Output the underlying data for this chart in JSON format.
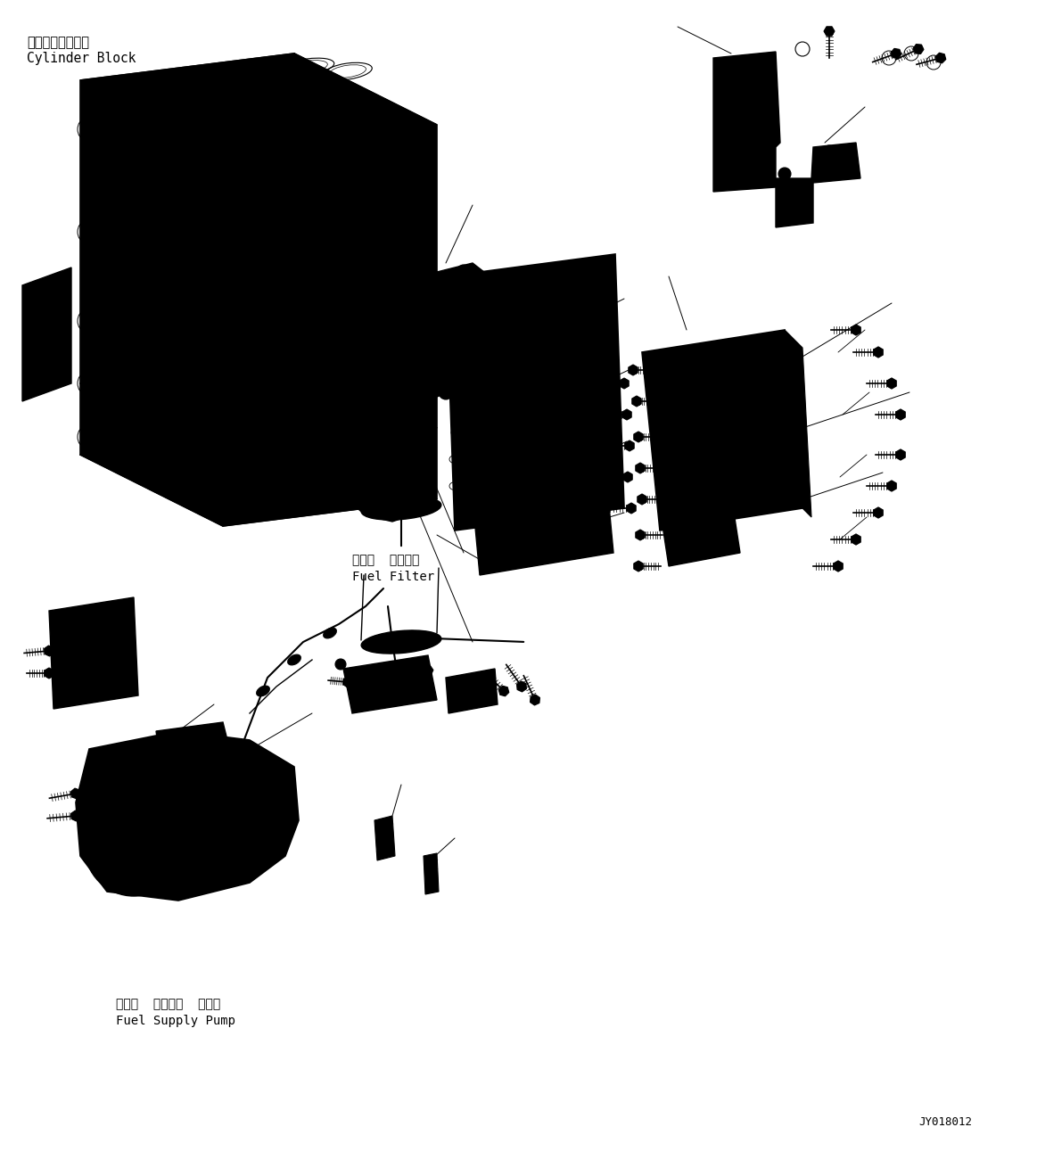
{
  "background_color": "#ffffff",
  "line_color": "#000000",
  "labels": {
    "cylinder_block_jp": "シリンダブロック",
    "cylinder_block_en": "Cylinder Block",
    "fuel_filter_jp": "フェル  フィルタ",
    "fuel_filter_en": "Fuel Filter",
    "fuel_pump_jp": "フェル  サブライ  ポンプ",
    "fuel_pump_en": "Fuel Supply Pump",
    "diagram_id": "JY018012"
  },
  "font_size": 10,
  "font_family": "monospace"
}
